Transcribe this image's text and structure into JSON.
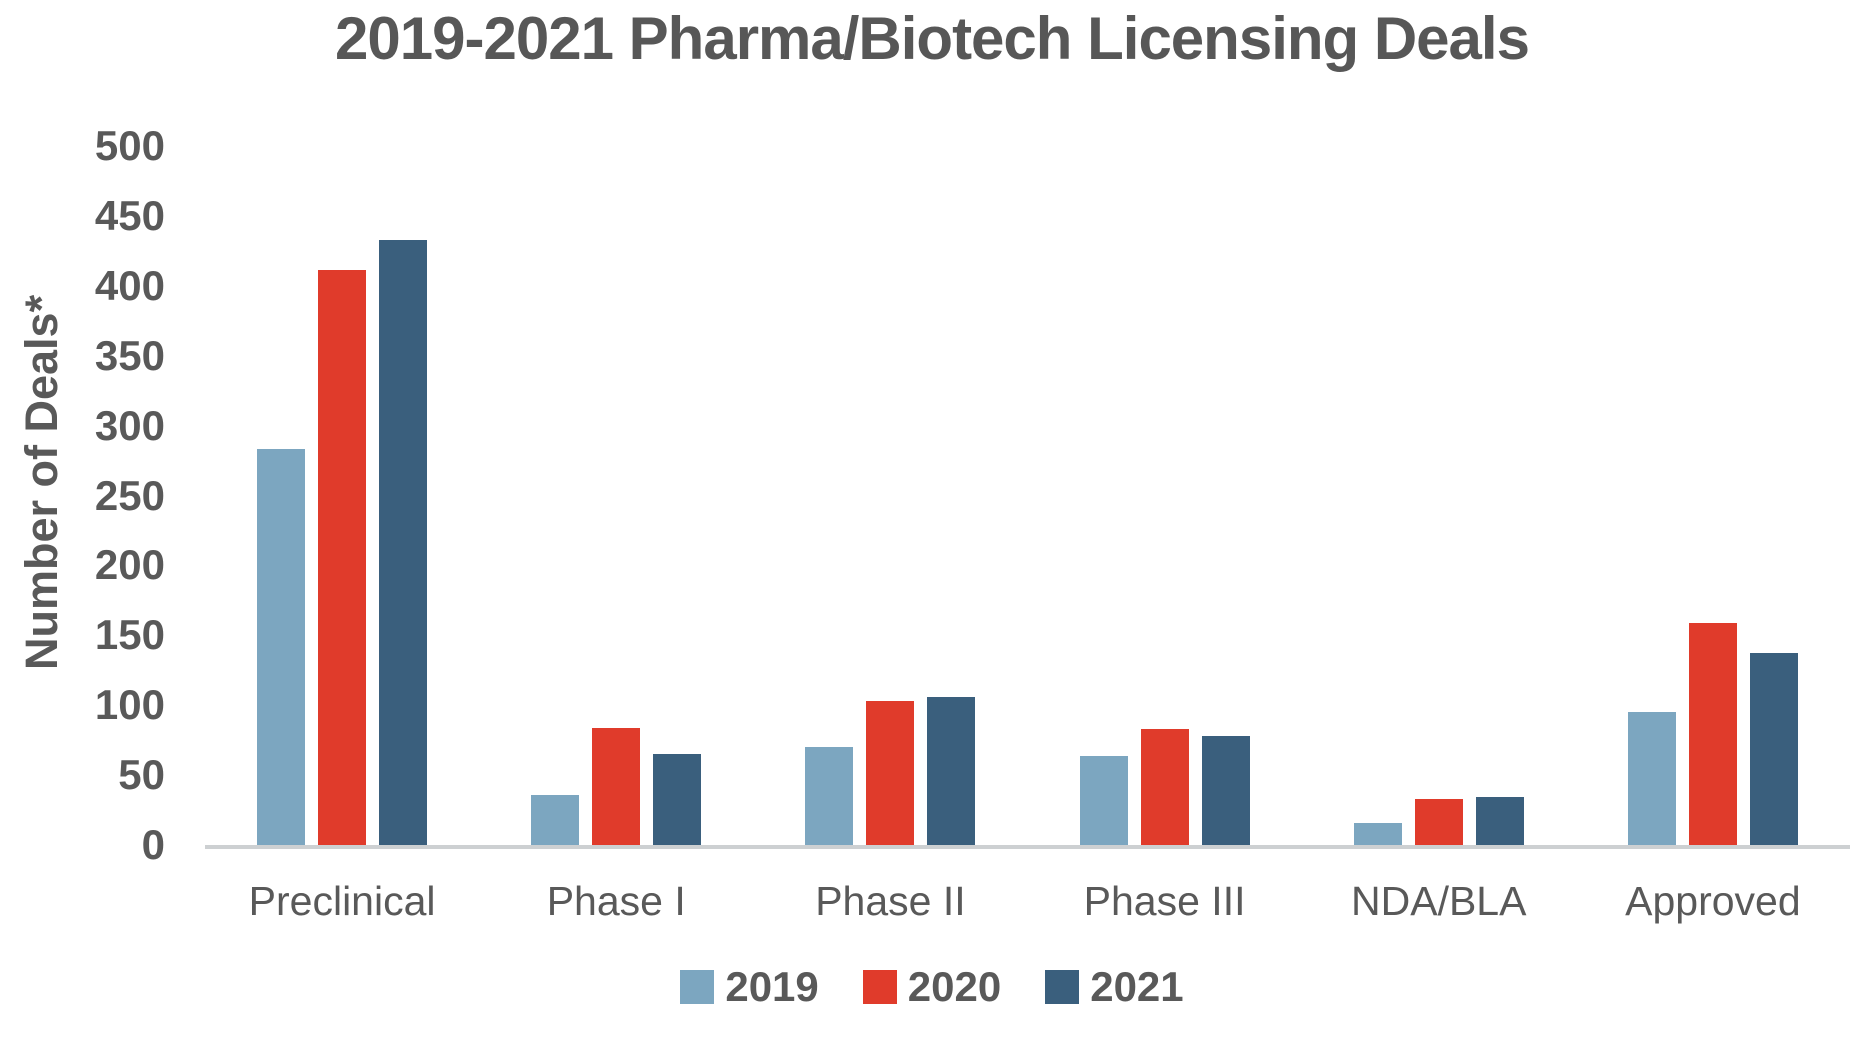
{
  "chart_data": {
    "type": "bar",
    "title": "2019-2021 Pharma/Biotech Licensing Deals",
    "ylabel": "Number of Deals*",
    "xlabel": "",
    "categories": [
      "Preclinical",
      "Phase I",
      "Phase II",
      "Phase III",
      "NDA/BLA",
      "Approved"
    ],
    "series": [
      {
        "name": "2019",
        "color": "#7CA6C0",
        "values": [
          283,
          36,
          70,
          64,
          16,
          95
        ]
      },
      {
        "name": "2020",
        "color": "#E03B2B",
        "values": [
          411,
          84,
          103,
          83,
          33,
          159
        ]
      },
      {
        "name": "2021",
        "color": "#3A5F7D",
        "values": [
          433,
          65,
          106,
          78,
          34,
          137
        ]
      }
    ],
    "ylim": [
      0,
      500
    ],
    "ytick_step": 50,
    "grid": false,
    "legend_position": "bottom",
    "colors": {
      "text": "#595959",
      "axis_line": "#cdd0d2",
      "background": "#ffffff"
    }
  }
}
